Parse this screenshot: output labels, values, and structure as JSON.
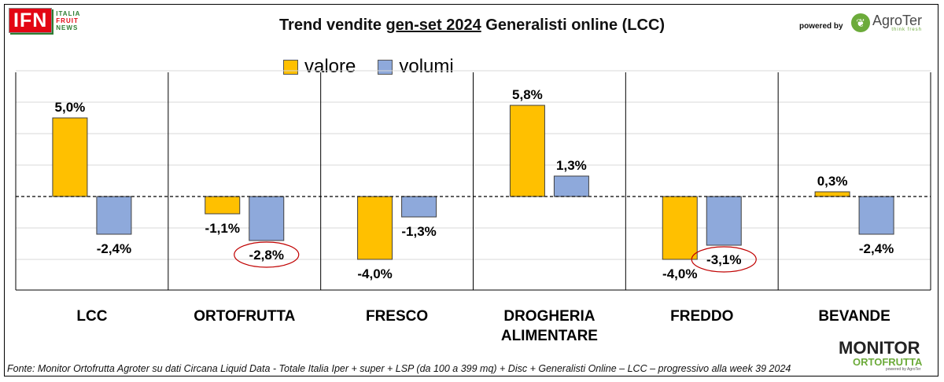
{
  "header": {
    "title_prefix": "Trend vendite ",
    "title_underlined": "gen-set 2024",
    "title_suffix": " Generalisti online (LCC)",
    "powered_by": "powered by",
    "logo_ifn": {
      "mark": "IFN",
      "line1": "ITALIA",
      "line2": "FRUIT",
      "line3": "NEWS"
    },
    "logo_agroter": {
      "name": "AgroTer",
      "tagline": "think fresh"
    }
  },
  "colors": {
    "valore": "#FFC000",
    "volumi": "#8EA9DB"
  },
  "chart_data": {
    "type": "bar",
    "title": "Trend vendite gen-set 2024 Generalisti online (LCC)",
    "categories": [
      "LCC",
      "ORTOFRUTTA",
      "FRESCO",
      "DROGHERIA ALIMENTARE",
      "FREDDO",
      "BEVANDE"
    ],
    "category_lines": [
      [
        "LCC"
      ],
      [
        "ORTOFRUTTA"
      ],
      [
        "FRESCO"
      ],
      [
        "DROGHERIA",
        "ALIMENTARE"
      ],
      [
        "FREDDO"
      ],
      [
        "BEVANDE"
      ]
    ],
    "series": [
      {
        "name": "valore",
        "values": [
          5.0,
          -1.1,
          -4.0,
          5.8,
          -4.0,
          0.3
        ],
        "labels": [
          "5,0%",
          "-1,1%",
          "-4,0%",
          "5,8%",
          "-4,0%",
          "0,3%"
        ]
      },
      {
        "name": "volumi",
        "values": [
          -2.4,
          -2.8,
          -1.3,
          1.3,
          -3.1,
          -2.4
        ],
        "labels": [
          "-2,4%",
          "-2,8%",
          "-1,3%",
          "1,3%",
          "-3,1%",
          "-2,4%"
        ]
      }
    ],
    "highlighted": [
      {
        "series": "volumi",
        "category": "ORTOFRUTTA"
      },
      {
        "series": "volumi",
        "category": "FREDDO"
      }
    ],
    "ylim": [
      -5,
      8
    ],
    "grid": true,
    "legend_position": "top-center",
    "xlabel": "",
    "ylabel": ""
  },
  "footer": {
    "source": "Fonte: Monitor Ortofrutta Agroter su dati Circana Liquid Data - Totale Italia Iper + super + LSP (da 100 a 399 mq) + Disc + Generalisti Online – LCC – progressivo alla week 39 2024",
    "logo_monitor": {
      "line1": "MONITOR",
      "line2": "ORTOFRUTTA",
      "powered": "powered by AgroTer"
    }
  }
}
